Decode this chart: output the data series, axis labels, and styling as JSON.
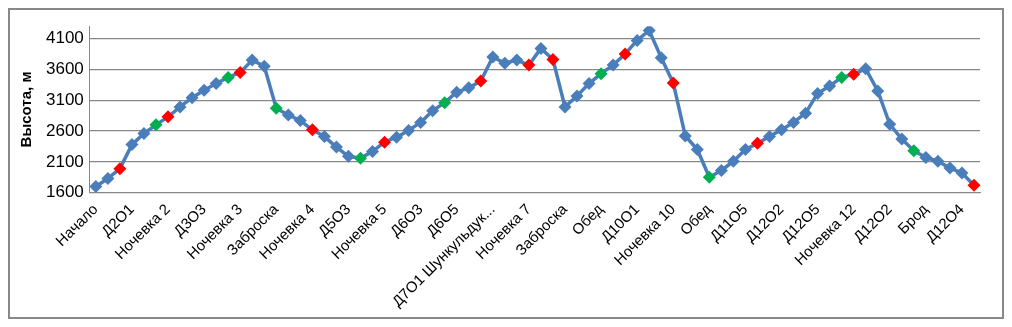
{
  "chart_data": {
    "type": "line",
    "ylabel": "Высота, м",
    "categories": [
      "Начало",
      null,
      null,
      "Д2О1",
      null,
      null,
      "Ночевка 2",
      null,
      null,
      "Д3О3",
      null,
      null,
      "Ночевка 3",
      null,
      null,
      "Заброска",
      null,
      null,
      "Ночевка 4",
      null,
      null,
      "Д5О3",
      null,
      null,
      "Ночевка 5",
      null,
      null,
      "Д6О3",
      null,
      null,
      "Д6О5",
      null,
      null,
      "Д7О1 Шункульдук...",
      null,
      null,
      "Ночевка 7",
      null,
      null,
      "Заброска",
      null,
      null,
      "Обед",
      null,
      null,
      "Д10О1",
      null,
      null,
      "Ночевка 10",
      null,
      null,
      "Обед",
      null,
      null,
      "Д11О5",
      null,
      null,
      "Д12О2",
      null,
      null,
      "Д12О5",
      null,
      null,
      "Ночевка 12",
      null,
      null,
      "Д12О2",
      null,
      null,
      "Брод",
      null,
      null,
      "Д12О4",
      null
    ],
    "series": [
      {
        "color": "#4a7ebb",
        "values": [
          1700,
          1830,
          1990,
          2380,
          2560,
          2700,
          2830,
          2990,
          3140,
          3260,
          3370,
          3470,
          3550,
          3750,
          3650,
          2970,
          2860,
          2770,
          2620,
          2510,
          2340,
          2190,
          2160,
          2270,
          2420,
          2500,
          2610,
          2740,
          2930,
          3060,
          3230,
          3300,
          3410,
          3800,
          3700,
          3750,
          3670,
          3940,
          3760,
          2990,
          3170,
          3370,
          3530,
          3670,
          3850,
          4070,
          4230,
          3790,
          3380,
          2520,
          2300,
          1850,
          1960,
          2110,
          2300,
          2400,
          2510,
          2620,
          2740,
          2890,
          3210,
          3330,
          3470,
          3520,
          3610,
          3250,
          2710,
          2470,
          2280,
          2170,
          2110,
          2000,
          1920,
          1720
        ],
        "colors": [
          "#4a7ebb",
          "#4a7ebb",
          "#ff0000",
          "#4a7ebb",
          "#4a7ebb",
          "#00b050",
          "#ff0000",
          "#4a7ebb",
          "#4a7ebb",
          "#4a7ebb",
          "#4a7ebb",
          "#00b050",
          "#ff0000",
          "#4a7ebb",
          "#4a7ebb",
          "#00b050",
          "#4a7ebb",
          "#4a7ebb",
          "#ff0000",
          "#4a7ebb",
          "#4a7ebb",
          "#4a7ebb",
          "#00b050",
          "#4a7ebb",
          "#ff0000",
          "#4a7ebb",
          "#4a7ebb",
          "#4a7ebb",
          "#4a7ebb",
          "#00b050",
          "#4a7ebb",
          "#4a7ebb",
          "#ff0000",
          "#4a7ebb",
          "#4a7ebb",
          "#4a7ebb",
          "#ff0000",
          "#4a7ebb",
          "#ff0000",
          "#4a7ebb",
          "#4a7ebb",
          "#4a7ebb",
          "#00b050",
          "#4a7ebb",
          "#ff0000",
          "#4a7ebb",
          "#4a7ebb",
          "#4a7ebb",
          "#ff0000",
          "#4a7ebb",
          "#4a7ebb",
          "#00b050",
          "#4a7ebb",
          "#4a7ebb",
          "#4a7ebb",
          "#ff0000",
          "#4a7ebb",
          "#4a7ebb",
          "#4a7ebb",
          "#4a7ebb",
          "#4a7ebb",
          "#4a7ebb",
          "#00b050",
          "#ff0000",
          "#4a7ebb",
          "#4a7ebb",
          "#4a7ebb",
          "#4a7ebb",
          "#00b050",
          "#4a7ebb",
          "#4a7ebb",
          "#4a7ebb",
          "#4a7ebb",
          "#ff0000"
        ]
      }
    ],
    "ylim": [
      1600,
      4300
    ],
    "yticks": [
      1600,
      2100,
      2600,
      3100,
      3600,
      4100
    ],
    "grid": "y",
    "legend": false,
    "marker": "diamond",
    "line_style": "solid"
  }
}
